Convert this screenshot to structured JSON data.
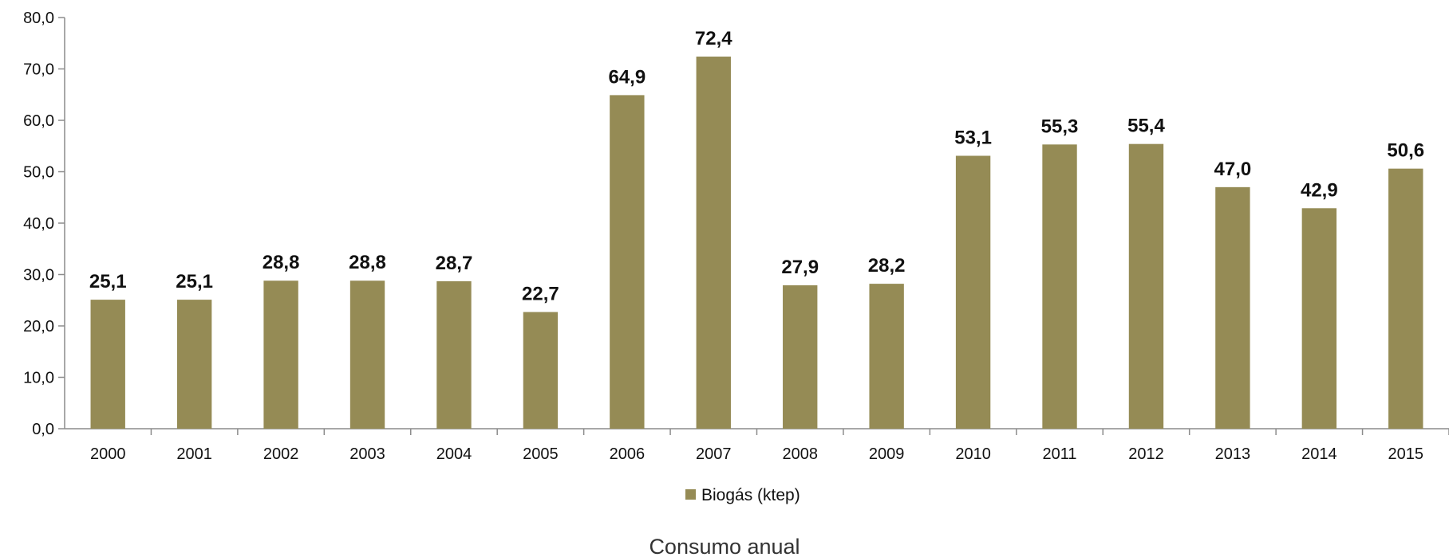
{
  "chart_data": {
    "type": "bar",
    "categories": [
      "2000",
      "2001",
      "2002",
      "2003",
      "2004",
      "2005",
      "2006",
      "2007",
      "2008",
      "2009",
      "2010",
      "2011",
      "2012",
      "2013",
      "2014",
      "2015"
    ],
    "series": [
      {
        "name": "Biogás (ktep)",
        "values": [
          25.1,
          25.1,
          28.8,
          28.8,
          28.7,
          22.7,
          64.9,
          72.4,
          27.9,
          28.2,
          53.1,
          55.3,
          55.4,
          47.0,
          42.9,
          50.6
        ],
        "labels": [
          "25,1",
          "25,1",
          "28,8",
          "28,8",
          "28,7",
          "22,7",
          "64,9",
          "72,4",
          "27,9",
          "28,2",
          "53,1",
          "55,3",
          "55,4",
          "47,0",
          "42,9",
          "50,6"
        ]
      }
    ],
    "ylim": [
      0,
      80
    ],
    "yticks": [
      0,
      10,
      20,
      30,
      40,
      50,
      60,
      70,
      80
    ],
    "ytick_labels": [
      "0,0",
      "10,0",
      "20,0",
      "30,0",
      "40,0",
      "50,0",
      "60,0",
      "70,0",
      "80,0"
    ],
    "grid": false,
    "legend_position": "bottom"
  },
  "caption": "Consumo anual",
  "colors": {
    "bar": "#958b55",
    "axis": "#8c8c8c"
  }
}
